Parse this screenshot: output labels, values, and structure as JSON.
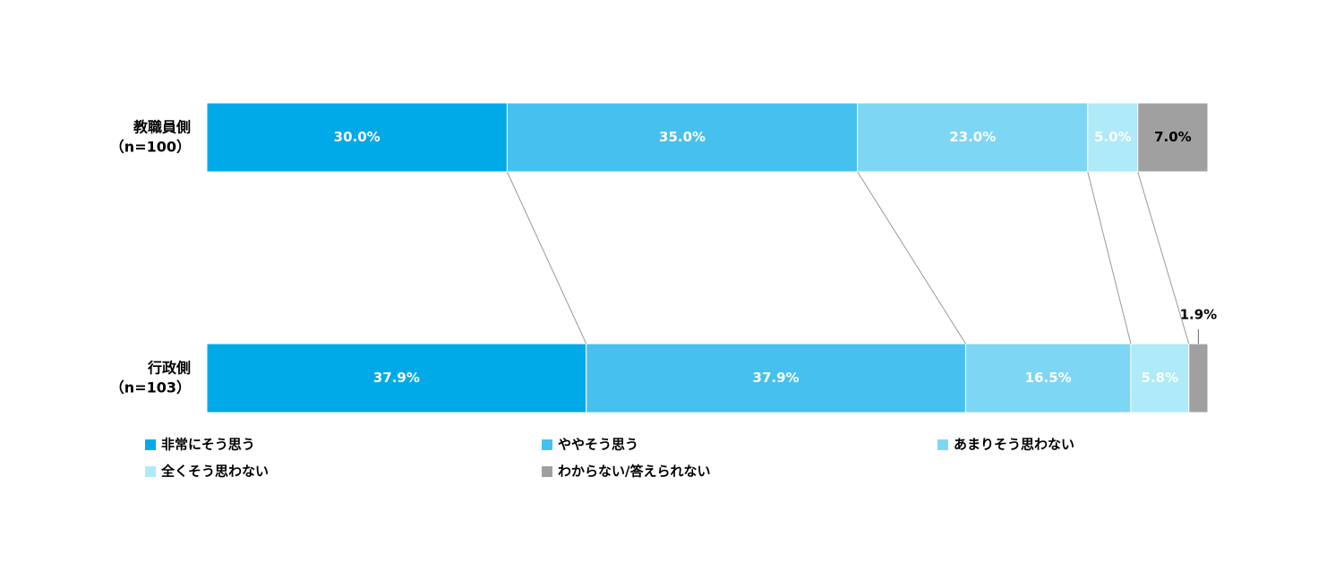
{
  "chart_data": {
    "type": "stacked-bar-horizontal",
    "categories": [
      "教職員側",
      "行政側"
    ],
    "category_notes": [
      "（n=100）",
      "（n=103）"
    ],
    "xlim": [
      0,
      100
    ],
    "series": [
      {
        "name": "非常にそう思う",
        "color": "#00a9e8",
        "label_color": "#ffffff",
        "values": [
          30.0,
          37.9
        ],
        "value_labels": [
          "30.0%",
          "37.9%"
        ]
      },
      {
        "name": "ややそう思う",
        "color": "#46c0ef",
        "label_color": "#ffffff",
        "values": [
          35.0,
          37.9
        ],
        "value_labels": [
          "35.0%",
          "37.9%"
        ]
      },
      {
        "name": "あまりそう思わない",
        "color": "#7ed6f5",
        "label_color": "#ffffff",
        "values": [
          23.0,
          16.5
        ],
        "value_labels": [
          "23.0%",
          "16.5%"
        ]
      },
      {
        "name": "全くそう思わない",
        "color": "#aeeaf8",
        "label_color": "#ffffff",
        "values": [
          5.0,
          5.8
        ],
        "value_labels": [
          "5.0%",
          "5.8%"
        ]
      },
      {
        "name": "わからない/答えられない",
        "color": "#a0a0a0",
        "label_color": "#000000",
        "values": [
          7.0,
          1.9
        ],
        "value_labels": [
          "7.0%",
          "1.9%"
        ]
      }
    ],
    "connector_lines": true
  }
}
